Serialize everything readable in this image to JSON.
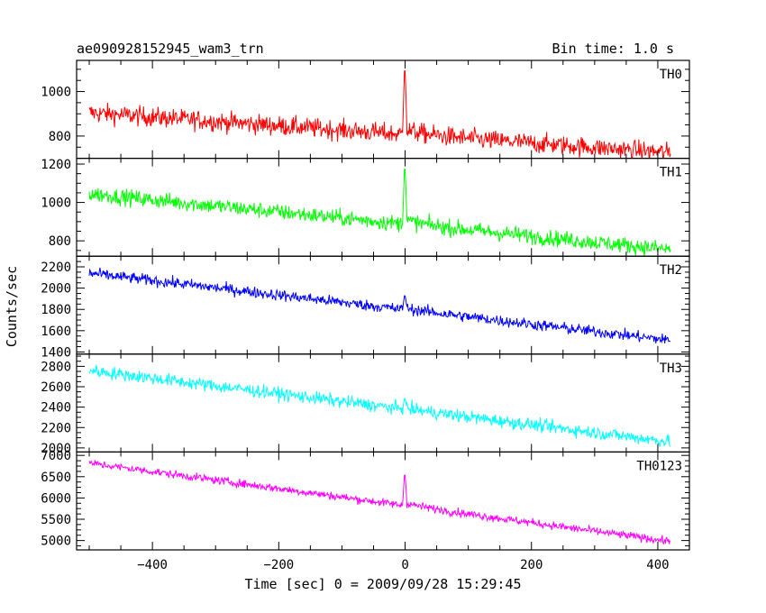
{
  "chart_data": {
    "type": "line",
    "title_left": "ae090928152945_wam3_trn",
    "title_right": "Bin time: 1.0 s",
    "xlabel": "Time [sec] 0 = 2009/09/28 15:29:45",
    "ylabel": "Counts/sec",
    "xlim": [
      -520,
      450
    ],
    "x_ticks": [
      -400,
      -200,
      0,
      200,
      400
    ],
    "x_range": [
      -500,
      420
    ],
    "grid": false,
    "panels": [
      {
        "name": "TH0",
        "color": "#ff0000",
        "ylim": [
          700,
          1140
        ],
        "y_ticks": [
          800,
          1000
        ],
        "start": 905,
        "end": 725,
        "noise": 42,
        "peak": 1140,
        "step": 20
      },
      {
        "name": "TH1",
        "color": "#00ff00",
        "ylim": [
          720,
          1230
        ],
        "y_ticks": [
          800,
          1000,
          1200
        ],
        "start": 1045,
        "end": 755,
        "noise": 40,
        "peak": 1220,
        "step": 20
      },
      {
        "name": "TH2",
        "color": "#0000ff",
        "ylim": [
          1380,
          2300
        ],
        "y_ticks": [
          1400,
          1600,
          1800,
          2000,
          2200
        ],
        "start": 2140,
        "end": 1510,
        "noise": 50,
        "peak": 1950,
        "step": 15
      },
      {
        "name": "TH3",
        "color": "#00ffff",
        "ylim": [
          1960,
          2920
        ],
        "y_ticks": [
          2000,
          2200,
          2400,
          2600,
          2800
        ],
        "start": 2760,
        "end": 2060,
        "noise": 60,
        "peak": 2500,
        "step": 10
      },
      {
        "name": "TH0123",
        "color": "#ff00ff",
        "ylim": [
          4780,
          7080
        ],
        "y_ticks": [
          5000,
          5500,
          6000,
          6500,
          7000
        ],
        "start": 6820,
        "end": 4980,
        "noise": 90,
        "peak": 6650,
        "step": 60
      }
    ]
  }
}
